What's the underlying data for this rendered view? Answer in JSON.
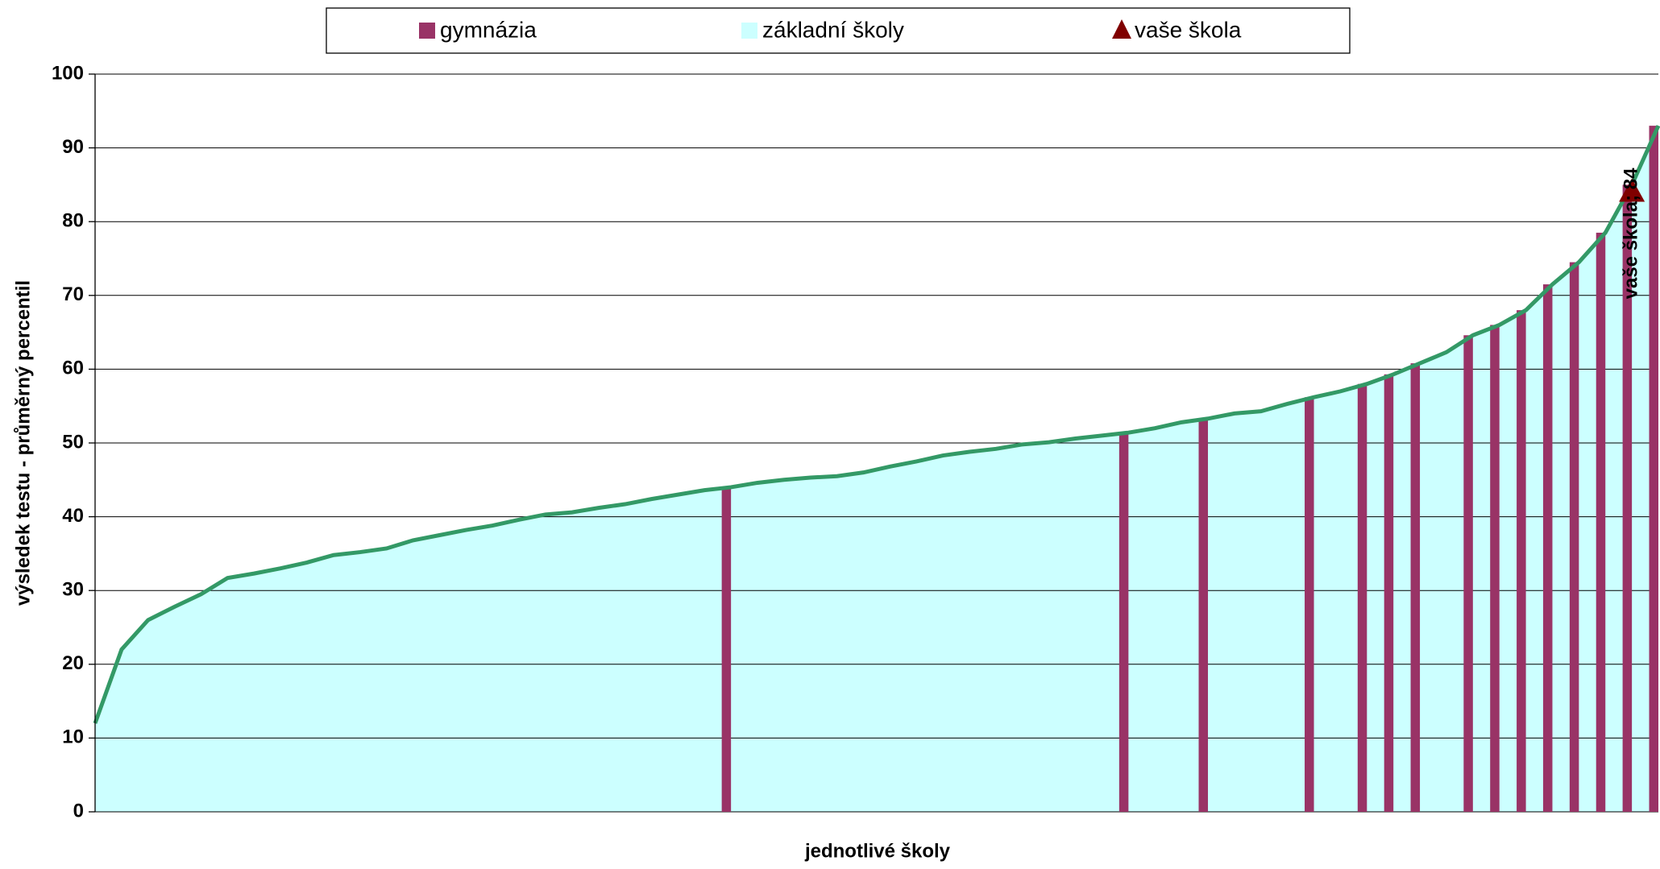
{
  "chart_data": {
    "type": "area",
    "x_label": "jednotlivé školy",
    "y_label": "výsledek testu - průměrný percentil",
    "ylim": [
      0,
      100
    ],
    "yticks": [
      0,
      10,
      20,
      30,
      40,
      50,
      60,
      70,
      80,
      90,
      100
    ],
    "grid": true,
    "legend": "top",
    "series": [
      {
        "name": "základní školy",
        "color": "#ccffff",
        "line_color": "#339966",
        "values": [
          12,
          22,
          26,
          27.8,
          29.5,
          31.7,
          32.3,
          33,
          33.8,
          34.8,
          35.2,
          35.7,
          36.8,
          37.5,
          38.2,
          38.8,
          39.6,
          40.3,
          40.6,
          41.2,
          41.7,
          42.4,
          43,
          43.6,
          44,
          44.6,
          45,
          45.3,
          45.5,
          46,
          46.8,
          47.5,
          48.3,
          48.8,
          49.2,
          49.8,
          50.1,
          50.6,
          51,
          51.4,
          52,
          52.8,
          53.3,
          54,
          54.3,
          55.3,
          56.2,
          57,
          58,
          59.3,
          60.8,
          62.3,
          64.6,
          66,
          68,
          71.5,
          74.5,
          78.5,
          85,
          93
        ]
      },
      {
        "name": "gymnázia",
        "color": "#993366",
        "values": [
          null,
          null,
          null,
          null,
          null,
          null,
          null,
          null,
          null,
          null,
          null,
          null,
          null,
          null,
          null,
          null,
          null,
          null,
          null,
          null,
          null,
          null,
          null,
          null,
          44,
          null,
          null,
          null,
          null,
          null,
          null,
          null,
          null,
          null,
          null,
          null,
          null,
          null,
          null,
          51.4,
          null,
          null,
          53.3,
          null,
          null,
          null,
          56.2,
          null,
          58,
          59.3,
          60.8,
          null,
          64.6,
          66,
          68,
          71.5,
          74.5,
          78.5,
          85,
          93
        ]
      }
    ],
    "marker": {
      "name": "vaše škola",
      "color": "#800000",
      "index": 58,
      "value": 84,
      "value_label": "vaše škola; 84"
    }
  }
}
